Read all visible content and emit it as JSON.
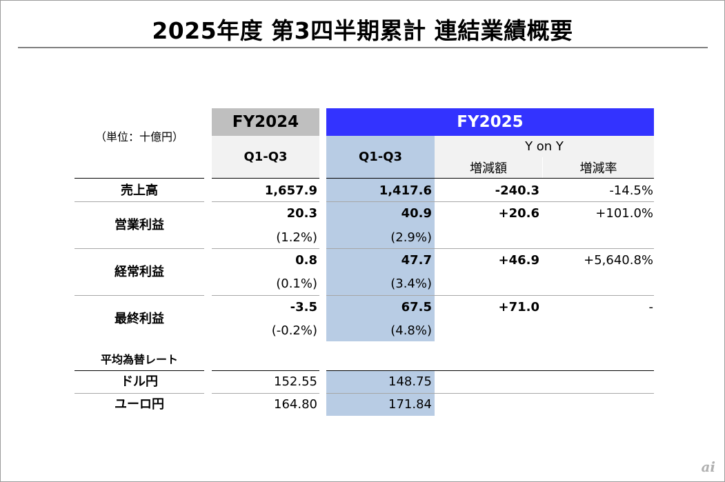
{
  "title": "2025年度 第3四半期累計 連結業績概要",
  "unit_label": "（単位：十億円）",
  "headers": {
    "fy2024": "FY2024",
    "fy2025": "FY2025",
    "q_prev": "Q1-Q3",
    "q_curr": "Q1-Q3",
    "yoy": "Y on Y",
    "change_amount": "増減額",
    "change_rate": "増減率"
  },
  "rows": [
    {
      "label": "売上高",
      "prev": "1,657.9",
      "curr": "1,417.6",
      "diff": "-240.3",
      "rate": "-14.5%",
      "prev_margin": "",
      "curr_margin": ""
    },
    {
      "label": "営業利益",
      "prev": "20.3",
      "curr": "40.9",
      "diff": "+20.6",
      "rate": "+101.0%",
      "prev_margin": "(1.2%)",
      "curr_margin": "(2.9%)"
    },
    {
      "label": "経常利益",
      "prev": "0.8",
      "curr": "47.7",
      "diff": "+46.9",
      "rate": "+5,640.8%",
      "prev_margin": "(0.1%)",
      "curr_margin": "(3.4%)"
    },
    {
      "label": "最終利益",
      "prev": "-3.5",
      "curr": "67.5",
      "diff": "+71.0",
      "rate": "-",
      "prev_margin": "(-0.2%)",
      "curr_margin": "(4.8%)"
    }
  ],
  "fx": {
    "heading": "平均為替レート",
    "rows": [
      {
        "label": "ドル円",
        "prev": "152.55",
        "curr": "148.75"
      },
      {
        "label": "ユーロ円",
        "prev": "164.80",
        "curr": "171.84"
      }
    ]
  },
  "watermark": "ai",
  "colors": {
    "fy2024_header": "#bfbfbf",
    "fy2025_header": "#3333ff",
    "current_column": "#b8cce4",
    "subheader": "#f2f2f2"
  }
}
